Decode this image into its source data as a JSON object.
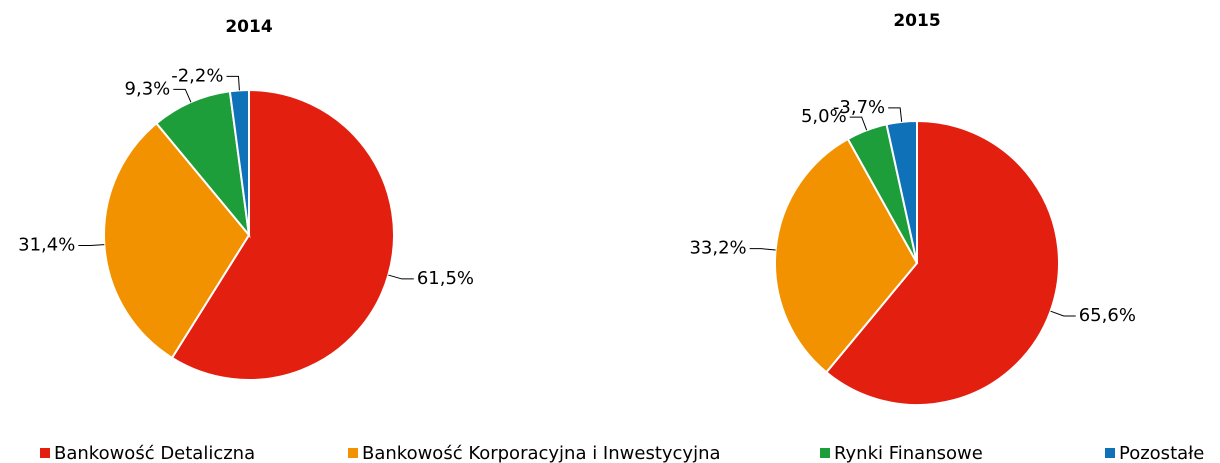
{
  "chart_data": [
    {
      "type": "pie",
      "title": "2014",
      "values": [
        61.5,
        31.4,
        9.3,
        -2.2
      ],
      "value_labels": [
        "61,5%",
        "31,4%",
        "9,3%",
        "-2,2%"
      ]
    },
    {
      "type": "pie",
      "title": "2015",
      "values": [
        65.6,
        33.2,
        5.0,
        -3.7
      ],
      "value_labels": [
        "65,6%",
        "33,2%",
        "5,0%",
        "-3,7%"
      ]
    }
  ],
  "legend": {
    "names": [
      "Bankowość Detaliczna",
      "Bankowość Korporacyjna i Inwestycyjna",
      "Rynki Finansowe",
      "Pozostałe"
    ],
    "colors": [
      "#e3200f",
      "#f39200",
      "#1e9e3a",
      "#0f72b8"
    ]
  }
}
